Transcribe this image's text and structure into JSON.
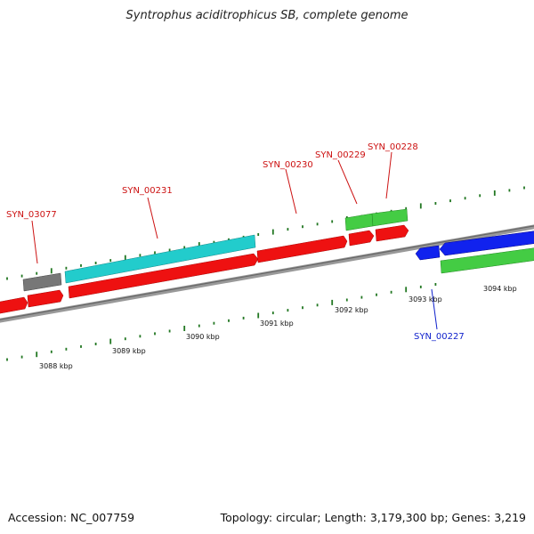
{
  "title": "Syntrophus aciditrophicus SB, complete genome",
  "accession_label": "Accession: NC_007759",
  "summary_label": "Topology: circular; Length: 3,179,300 bp; Genes: 3,219",
  "colors": {
    "forward_gene": "#ee1111",
    "cds_gray": "#777777",
    "cds_cyan": "#22cccc",
    "cds_green": "#44cc44",
    "reverse_gene": "#1122ee",
    "forward_label": "#cc1111",
    "reverse_label": "#1122cc",
    "backbone": "#888888",
    "tick": "#227722"
  },
  "scale_labels": [
    "3088 kbp",
    "3089 kbp",
    "3090 kbp",
    "3091 kbp",
    "3092 kbp",
    "3093 kbp",
    "3094 kbp"
  ],
  "gene_labels": {
    "syn_03077": "SYN_03077",
    "syn_00231": "SYN_00231",
    "syn_00230": "SYN_00230",
    "syn_00229": "SYN_00229",
    "syn_00228": "SYN_00228",
    "syn_00227": "SYN_00227"
  }
}
